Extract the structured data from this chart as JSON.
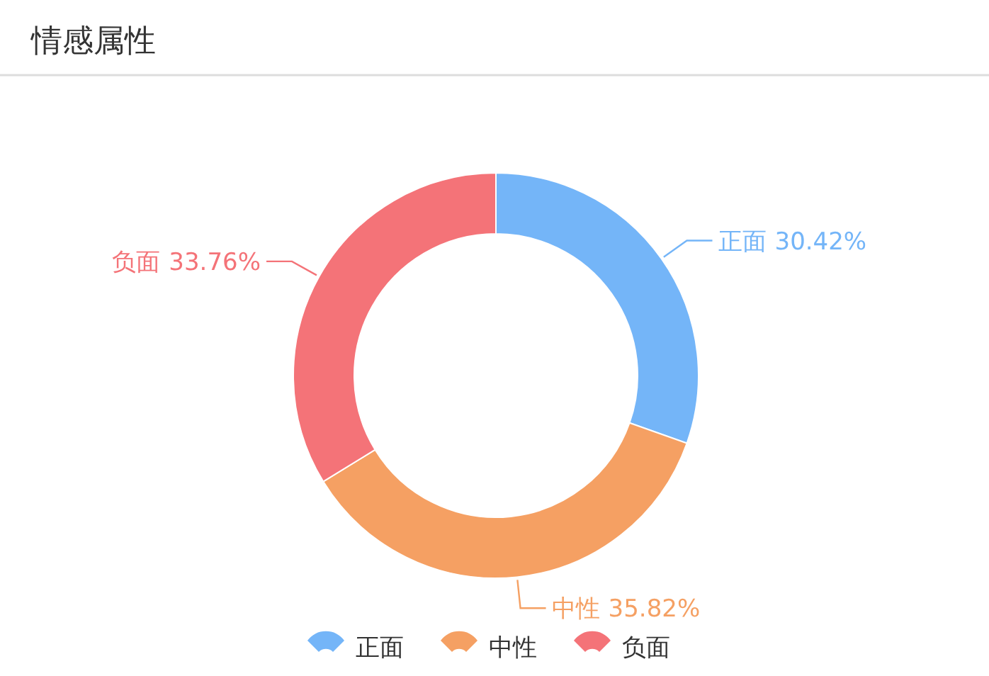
{
  "chart_data": {
    "type": "donut",
    "title": "情感属性",
    "categories": [
      "正面",
      "中性",
      "负面"
    ],
    "values": [
      30.42,
      35.82,
      33.76
    ],
    "colors": [
      "#74b5f8",
      "#f5a063",
      "#f47378"
    ],
    "legend": "bottom",
    "value_labels": [
      "30.42%",
      "35.82%",
      "33.76%"
    ]
  }
}
